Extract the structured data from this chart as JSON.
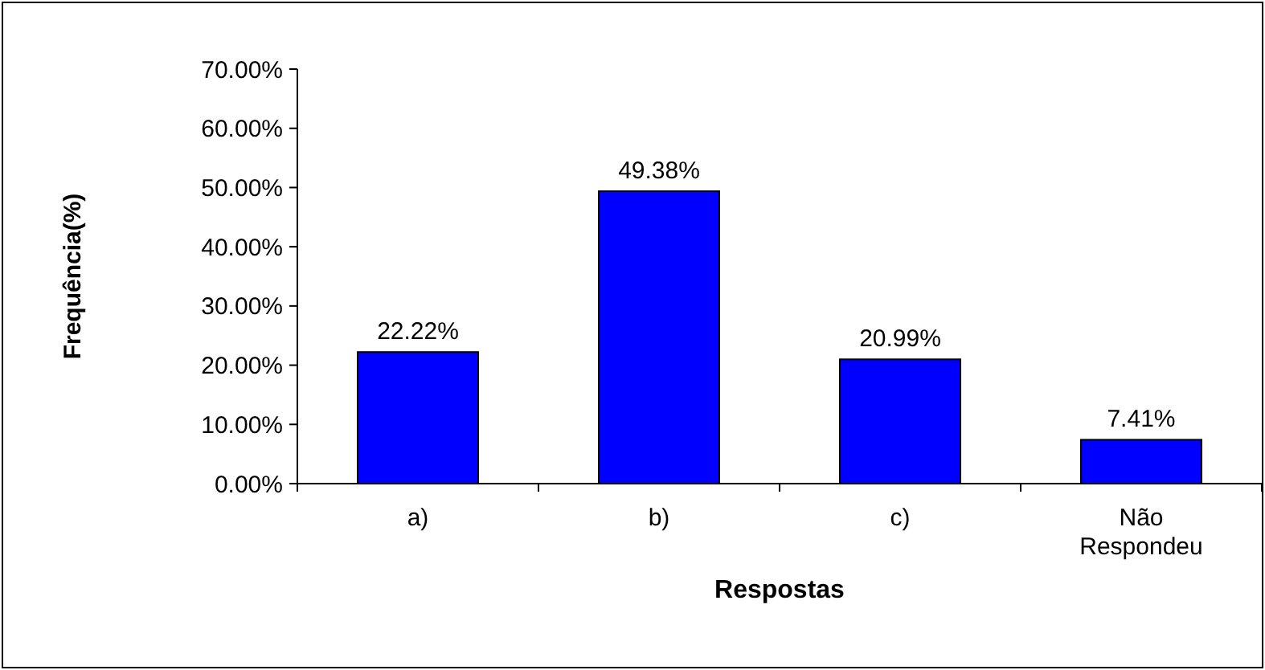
{
  "chart_data": {
    "type": "bar",
    "xlabel": "Respostas",
    "ylabel": "Frequência(%)",
    "categories": [
      "a)",
      "b)",
      "c)",
      "Não Respondeu"
    ],
    "values": [
      22.22,
      49.38,
      20.99,
      7.41
    ],
    "value_labels": [
      "22.22%",
      "49.38%",
      "20.99%",
      "7.41%"
    ],
    "color": "#0000ff",
    "ylim": [
      0,
      70
    ],
    "yticks": [
      {
        "value": 0,
        "label": "0.00%"
      },
      {
        "value": 10,
        "label": "10.00%"
      },
      {
        "value": 20,
        "label": "20.00%"
      },
      {
        "value": 30,
        "label": "30.00%"
      },
      {
        "value": 40,
        "label": "40.00%"
      },
      {
        "value": 50,
        "label": "50.00%"
      },
      {
        "value": 60,
        "label": "60.00%"
      },
      {
        "value": 70,
        "label": "70.00%"
      }
    ],
    "grid": false
  }
}
